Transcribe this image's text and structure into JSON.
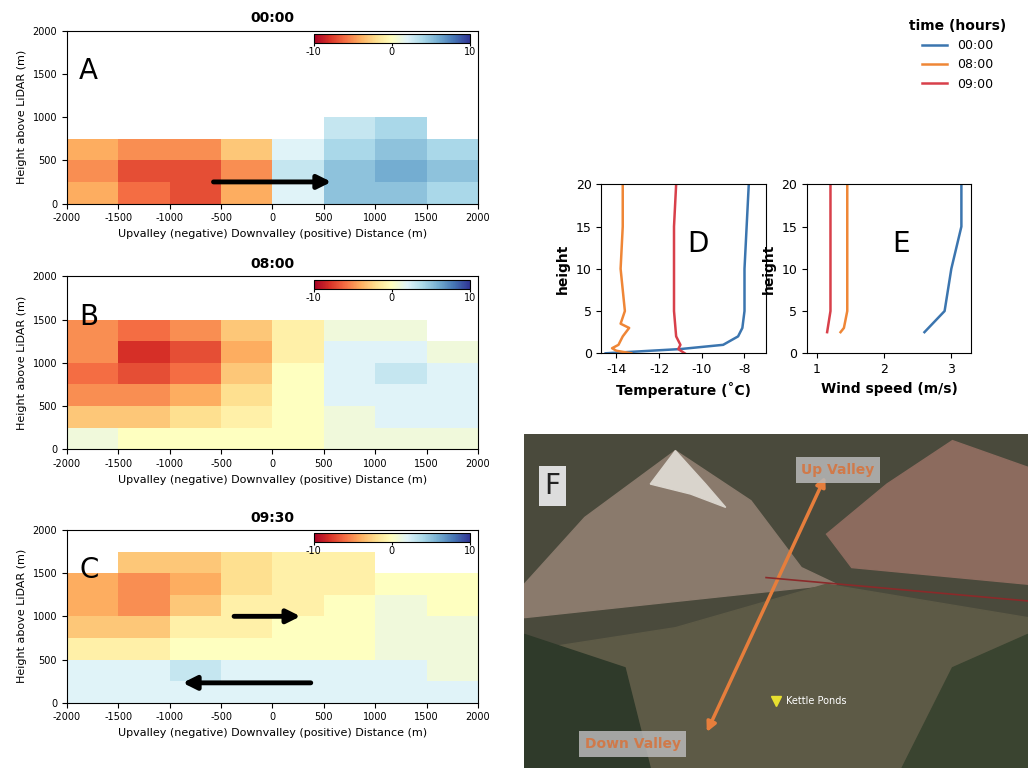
{
  "chart_data": [
    {
      "panel": "A",
      "type": "heatmap",
      "title": "00:00",
      "x_label": "Upvalley (negative) Downvalley (positive) Distance (m)",
      "y_label": "Height above LiDAR (m)",
      "x_edges": [
        -2000,
        -1500,
        -1000,
        -500,
        0,
        500,
        1000,
        1500,
        2000
      ],
      "y_edges": [
        0,
        250,
        500,
        750,
        1000,
        1250,
        1500,
        1750,
        2000
      ],
      "cells": [
        [
          -4,
          -6,
          -7,
          -4,
          2,
          5,
          5,
          4
        ],
        [
          -5,
          -7,
          -7,
          -5,
          3,
          5,
          6,
          5
        ],
        [
          -4,
          -5,
          -5,
          -3,
          2,
          4,
          5,
          4
        ],
        [
          null,
          null,
          null,
          null,
          null,
          3,
          4,
          null
        ],
        [
          null,
          null,
          null,
          null,
          null,
          null,
          null,
          null
        ],
        [
          null,
          null,
          null,
          null,
          null,
          null,
          null,
          null
        ],
        [
          null,
          null,
          null,
          null,
          null,
          null,
          null,
          null
        ],
        [
          null,
          null,
          null,
          null,
          null,
          null,
          null,
          null
        ]
      ],
      "colorbar": {
        "range": [
          -10,
          10
        ],
        "ticks": [
          -10,
          0,
          10
        ]
      },
      "arrows": [
        {
          "x_start": -600,
          "x_end": 600,
          "y": 250
        }
      ],
      "xlim": [
        -2000,
        2000
      ],
      "xticks": [
        -2000,
        -1500,
        -1000,
        -500,
        0,
        500,
        1000,
        1500,
        2000
      ],
      "ylim": [
        0,
        2000
      ],
      "yticks": [
        0,
        500,
        1000,
        1500,
        2000
      ]
    },
    {
      "panel": "B",
      "type": "heatmap",
      "title": "08:00",
      "x_label": "Upvalley (negative) Downvalley (positive) Distance (m)",
      "y_label": "Height above LiDAR (m)",
      "x_edges": [
        -2000,
        -1500,
        -1000,
        -500,
        0,
        500,
        1000,
        1500,
        2000
      ],
      "y_edges": [
        0,
        250,
        500,
        750,
        1000,
        1250,
        1500,
        1750,
        2000
      ],
      "cells": [
        [
          1,
          0,
          0,
          0,
          0,
          1,
          1,
          1
        ],
        [
          -3,
          -3,
          -2,
          -1,
          0,
          1,
          2,
          2
        ],
        [
          -5,
          -5,
          -4,
          -2,
          0,
          2,
          2,
          2
        ],
        [
          -6,
          -7,
          -6,
          -3,
          0,
          2,
          3,
          2
        ],
        [
          -5,
          -8,
          -7,
          -4,
          -1,
          2,
          2,
          1
        ],
        [
          -5,
          -6,
          -5,
          -3,
          -1,
          1,
          1,
          null
        ],
        [
          null,
          null,
          null,
          null,
          null,
          null,
          null,
          null
        ],
        [
          null,
          null,
          null,
          null,
          null,
          null,
          null,
          null
        ]
      ],
      "colorbar": {
        "range": [
          -10,
          10
        ],
        "ticks": [
          -10,
          0,
          10
        ]
      },
      "arrows": [],
      "xlim": [
        -2000,
        2000
      ],
      "xticks": [
        -2000,
        -1500,
        -1000,
        -500,
        0,
        500,
        1000,
        1500,
        2000
      ],
      "ylim": [
        0,
        2000
      ],
      "yticks": [
        0,
        500,
        1000,
        1500,
        2000
      ]
    },
    {
      "panel": "C",
      "type": "heatmap",
      "title": "09:30",
      "x_label": "Upvalley (negative) Downvalley (positive) Distance (m)",
      "y_label": "Height above LiDAR (m)",
      "x_edges": [
        -2000,
        -1500,
        -1000,
        -500,
        0,
        500,
        1000,
        1500,
        2000
      ],
      "y_edges": [
        0,
        250,
        500,
        750,
        1000,
        1250,
        1500,
        1750,
        2000
      ],
      "cells": [
        [
          2,
          2,
          2,
          2,
          2,
          2,
          2,
          2
        ],
        [
          2,
          2,
          3,
          2,
          2,
          2,
          2,
          1
        ],
        [
          -1,
          -1,
          0,
          0,
          0,
          0,
          1,
          1
        ],
        [
          -3,
          -3,
          -1,
          -1,
          0,
          0,
          1,
          1
        ],
        [
          -4,
          -5,
          -3,
          -1,
          -1,
          0,
          1,
          0
        ],
        [
          -4,
          -5,
          -4,
          -2,
          -1,
          -1,
          0,
          0
        ],
        [
          null,
          -3,
          -3,
          -2,
          -1,
          -1,
          null,
          null
        ],
        [
          null,
          null,
          null,
          null,
          null,
          null,
          null,
          null
        ]
      ],
      "colorbar": {
        "range": [
          -10,
          10
        ],
        "ticks": [
          -10,
          0,
          10
        ]
      },
      "arrows": [
        {
          "x_start": -400,
          "x_end": 300,
          "y": 1000
        },
        {
          "x_start": 400,
          "x_end": -900,
          "y": 230
        }
      ],
      "xlim": [
        -2000,
        2000
      ],
      "xticks": [
        -2000,
        -1500,
        -1000,
        -500,
        0,
        500,
        1000,
        1500,
        2000
      ],
      "ylim": [
        0,
        2000
      ],
      "yticks": [
        0,
        500,
        1000,
        1500,
        2000
      ]
    },
    {
      "panel": "D",
      "type": "line",
      "x_label": "Temperature (˚C)",
      "y_label": "height",
      "legend": "upper right",
      "legend_title": "time (hours)",
      "series": [
        {
          "name": "00:00",
          "color": "#3b75af",
          "x": [
            -14.5,
            -11.0,
            -9.0,
            -8.3,
            -8.1,
            -8.0,
            -8.0,
            -7.9,
            -7.8
          ],
          "y": [
            0,
            0.5,
            1,
            2,
            3,
            5,
            10,
            15,
            20
          ]
        },
        {
          "name": "08:00",
          "color": "#ef8636",
          "x": [
            -13.3,
            -14.0,
            -14.2,
            -13.9,
            -13.7,
            -13.4,
            -13.8,
            -13.6,
            -13.8,
            -13.7,
            -13.7
          ],
          "y": [
            0,
            0.3,
            0.6,
            1,
            2,
            3,
            3.5,
            5,
            10,
            15,
            20
          ]
        },
        {
          "name": "09:00",
          "color": "#d8404a",
          "x": [
            -10.8,
            -11.1,
            -11.0,
            -11.2,
            -11.3,
            -11.3,
            -11.3,
            -11.2
          ],
          "y": [
            0,
            0.5,
            1,
            2,
            5,
            10,
            15,
            20
          ]
        }
      ],
      "xlim": [
        -14.7,
        -7.0
      ],
      "xticks": [
        -14,
        -12,
        -10,
        -8
      ],
      "ylim": [
        0,
        20
      ],
      "yticks": [
        0,
        5,
        10,
        15,
        20
      ]
    },
    {
      "panel": "E",
      "type": "line",
      "x_label": "Wind speed (m/s)",
      "y_label": "height",
      "series": [
        {
          "name": "00:00",
          "color": "#3b75af",
          "x": [
            2.6,
            2.9,
            3.0,
            3.15,
            3.15
          ],
          "y": [
            2.5,
            5,
            10,
            15,
            20
          ]
        },
        {
          "name": "08:00",
          "color": "#ef8636",
          "x": [
            1.35,
            1.4,
            1.45,
            1.45,
            1.45,
            1.45
          ],
          "y": [
            2.5,
            3,
            5,
            10,
            15,
            20
          ]
        },
        {
          "name": "09:00",
          "color": "#d8404a",
          "x": [
            1.15,
            1.2,
            1.2,
            1.2,
            1.2
          ],
          "y": [
            2.5,
            5,
            10,
            15,
            20
          ]
        }
      ],
      "xlim": [
        0.85,
        3.3
      ],
      "xticks": [
        1,
        2,
        3
      ],
      "ylim": [
        0,
        20
      ],
      "yticks": [
        0,
        5,
        10,
        15,
        20
      ]
    }
  ],
  "image": {
    "panel": "F",
    "up_label": "Up Valley",
    "down_label": "Down Valley",
    "site_label": "Kettle Ponds"
  }
}
